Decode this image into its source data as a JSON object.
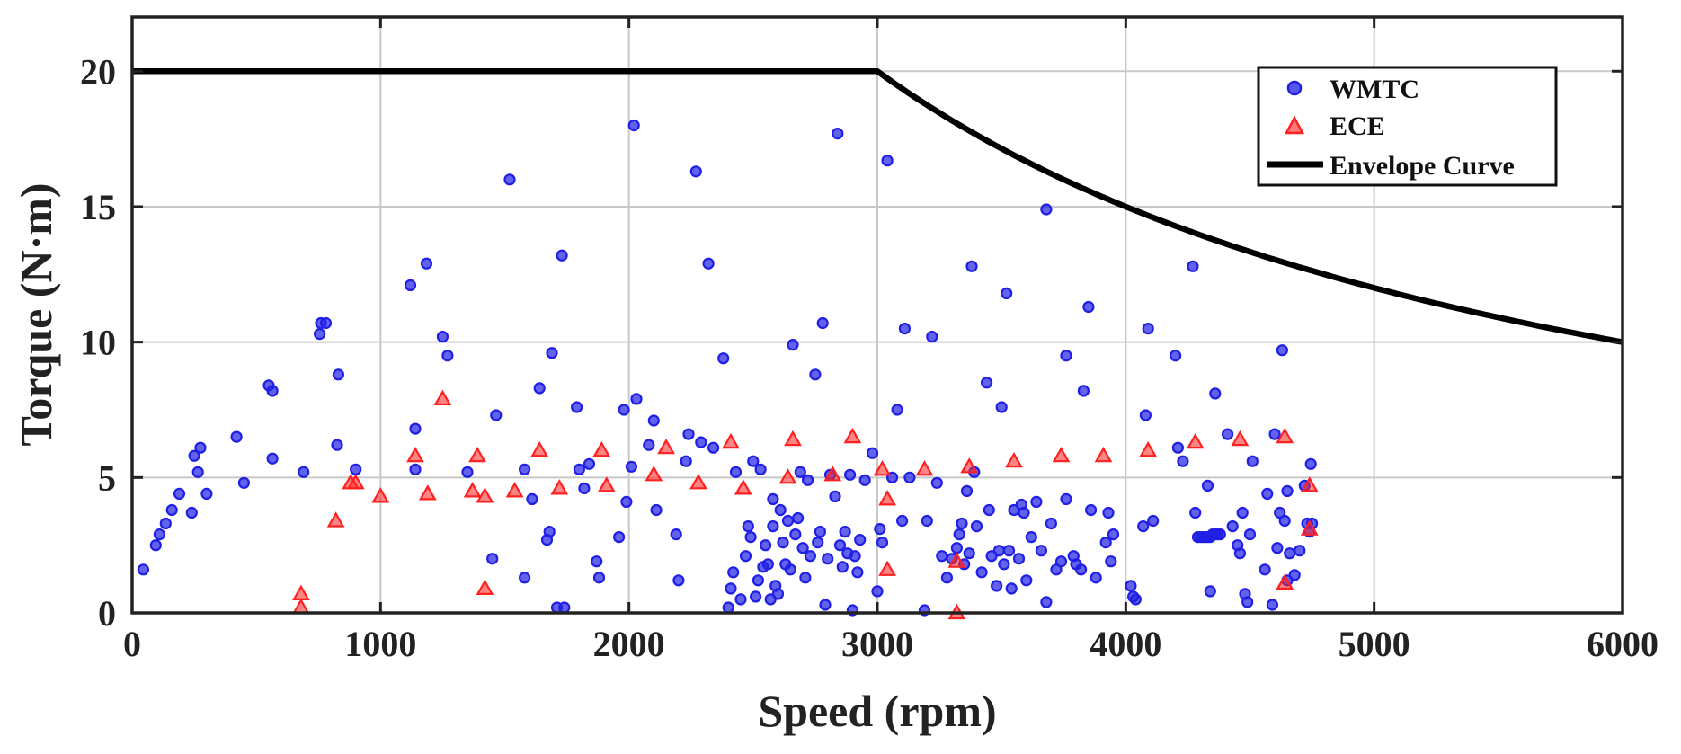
{
  "chart_data": {
    "type": "scatter",
    "xlabel": "Speed (rpm)",
    "ylabel": "Torque (N·m)",
    "xlim": [
      0,
      6000
    ],
    "ylim": [
      0,
      22
    ],
    "xticks": [
      0,
      1000,
      2000,
      3000,
      4000,
      5000,
      6000
    ],
    "yticks": [
      0,
      5,
      10,
      15,
      20
    ],
    "xtick_labels": [
      "0",
      "1000",
      "2000",
      "3000",
      "4000",
      "5000",
      "6000"
    ],
    "ytick_labels": [
      "0",
      "5",
      "10",
      "15",
      "20"
    ],
    "grid": true,
    "legend_position": "top-right",
    "colors": {
      "wmtc": "#1f1fe6",
      "ece": "#ff2020",
      "envelope": "#000000"
    },
    "series": [
      {
        "name": "WMTC",
        "marker": "circle",
        "points": [
          [
            45,
            1.6
          ],
          [
            95,
            2.5
          ],
          [
            110,
            2.9
          ],
          [
            135,
            3.3
          ],
          [
            160,
            3.8
          ],
          [
            190,
            4.4
          ],
          [
            240,
            3.7
          ],
          [
            250,
            5.8
          ],
          [
            265,
            5.2
          ],
          [
            275,
            6.1
          ],
          [
            300,
            4.4
          ],
          [
            420,
            6.5
          ],
          [
            450,
            4.8
          ],
          [
            550,
            8.4
          ],
          [
            565,
            8.2
          ],
          [
            565,
            5.7
          ],
          [
            690,
            5.2
          ],
          [
            755,
            10.3
          ],
          [
            760,
            10.7
          ],
          [
            780,
            10.7
          ],
          [
            825,
            6.2
          ],
          [
            830,
            8.8
          ],
          [
            900,
            5.3
          ],
          [
            1120,
            12.1
          ],
          [
            1140,
            6.8
          ],
          [
            1140,
            5.3
          ],
          [
            1185,
            12.9
          ],
          [
            1250,
            10.2
          ],
          [
            1270,
            9.5
          ],
          [
            1350,
            5.2
          ],
          [
            1450,
            2.0
          ],
          [
            1465,
            7.3
          ],
          [
            1520,
            16.0
          ],
          [
            1580,
            5.3
          ],
          [
            1580,
            1.3
          ],
          [
            1610,
            4.2
          ],
          [
            1640,
            8.3
          ],
          [
            1670,
            2.7
          ],
          [
            1680,
            3.0
          ],
          [
            1690,
            9.6
          ],
          [
            1710,
            0.2
          ],
          [
            1730,
            13.2
          ],
          [
            1740,
            0.2
          ],
          [
            1790,
            7.6
          ],
          [
            1800,
            5.3
          ],
          [
            1820,
            4.6
          ],
          [
            1840,
            5.5
          ],
          [
            1870,
            1.9
          ],
          [
            1880,
            1.3
          ],
          [
            1960,
            2.8
          ],
          [
            1980,
            7.5
          ],
          [
            1990,
            4.1
          ],
          [
            2010,
            5.4
          ],
          [
            2020,
            18.0
          ],
          [
            2030,
            7.9
          ],
          [
            2080,
            6.2
          ],
          [
            2100,
            7.1
          ],
          [
            2110,
            3.8
          ],
          [
            2190,
            2.9
          ],
          [
            2200,
            1.2
          ],
          [
            2230,
            5.6
          ],
          [
            2240,
            6.6
          ],
          [
            2270,
            16.3
          ],
          [
            2290,
            6.3
          ],
          [
            2320,
            12.9
          ],
          [
            2340,
            6.1
          ],
          [
            2380,
            9.4
          ],
          [
            2400,
            0.2
          ],
          [
            2410,
            0.9
          ],
          [
            2420,
            1.5
          ],
          [
            2430,
            5.2
          ],
          [
            2450,
            0.5
          ],
          [
            2470,
            2.1
          ],
          [
            2480,
            3.2
          ],
          [
            2490,
            2.8
          ],
          [
            2500,
            5.6
          ],
          [
            2510,
            0.6
          ],
          [
            2520,
            1.2
          ],
          [
            2530,
            5.3
          ],
          [
            2540,
            1.7
          ],
          [
            2550,
            2.5
          ],
          [
            2560,
            1.8
          ],
          [
            2570,
            0.5
          ],
          [
            2580,
            3.2
          ],
          [
            2580,
            4.2
          ],
          [
            2590,
            1.0
          ],
          [
            2600,
            0.7
          ],
          [
            2610,
            3.8
          ],
          [
            2620,
            2.6
          ],
          [
            2630,
            1.8
          ],
          [
            2640,
            3.4
          ],
          [
            2650,
            1.6
          ],
          [
            2660,
            9.9
          ],
          [
            2670,
            2.9
          ],
          [
            2680,
            3.5
          ],
          [
            2690,
            5.2
          ],
          [
            2700,
            2.4
          ],
          [
            2710,
            1.3
          ],
          [
            2720,
            4.9
          ],
          [
            2730,
            2.1
          ],
          [
            2750,
            8.8
          ],
          [
            2760,
            2.6
          ],
          [
            2770,
            3.0
          ],
          [
            2780,
            10.7
          ],
          [
            2790,
            0.3
          ],
          [
            2800,
            2.0
          ],
          [
            2810,
            5.1
          ],
          [
            2830,
            4.3
          ],
          [
            2840,
            17.7
          ],
          [
            2850,
            2.5
          ],
          [
            2860,
            1.7
          ],
          [
            2870,
            3.0
          ],
          [
            2880,
            2.2
          ],
          [
            2890,
            5.1
          ],
          [
            2900,
            0.1
          ],
          [
            2910,
            2.1
          ],
          [
            2920,
            1.5
          ],
          [
            2930,
            2.7
          ],
          [
            2950,
            4.9
          ],
          [
            2980,
            5.9
          ],
          [
            3000,
            0.8
          ],
          [
            3010,
            3.1
          ],
          [
            3020,
            2.6
          ],
          [
            3040,
            16.7
          ],
          [
            3060,
            5.0
          ],
          [
            3080,
            7.5
          ],
          [
            3100,
            3.4
          ],
          [
            3110,
            10.5
          ],
          [
            3130,
            5.0
          ],
          [
            3190,
            0.1
          ],
          [
            3200,
            3.4
          ],
          [
            3220,
            10.2
          ],
          [
            3240,
            4.8
          ],
          [
            3260,
            2.1
          ],
          [
            3280,
            1.3
          ],
          [
            3300,
            2.0
          ],
          [
            3320,
            2.4
          ],
          [
            3330,
            2.9
          ],
          [
            3340,
            3.3
          ],
          [
            3350,
            1.8
          ],
          [
            3360,
            4.5
          ],
          [
            3370,
            2.2
          ],
          [
            3380,
            12.8
          ],
          [
            3390,
            5.2
          ],
          [
            3400,
            3.2
          ],
          [
            3420,
            1.5
          ],
          [
            3440,
            8.5
          ],
          [
            3450,
            3.8
          ],
          [
            3460,
            2.1
          ],
          [
            3480,
            1.0
          ],
          [
            3490,
            2.3
          ],
          [
            3500,
            7.6
          ],
          [
            3510,
            1.8
          ],
          [
            3520,
            11.8
          ],
          [
            3530,
            2.3
          ],
          [
            3540,
            0.9
          ],
          [
            3550,
            3.8
          ],
          [
            3570,
            2.0
          ],
          [
            3580,
            4.0
          ],
          [
            3590,
            3.7
          ],
          [
            3600,
            1.2
          ],
          [
            3620,
            2.8
          ],
          [
            3640,
            4.1
          ],
          [
            3660,
            2.3
          ],
          [
            3680,
            14.9
          ],
          [
            3680,
            0.4
          ],
          [
            3700,
            3.3
          ],
          [
            3720,
            1.6
          ],
          [
            3740,
            1.9
          ],
          [
            3760,
            9.5
          ],
          [
            3760,
            4.2
          ],
          [
            3790,
            2.1
          ],
          [
            3800,
            1.8
          ],
          [
            3820,
            1.6
          ],
          [
            3830,
            8.2
          ],
          [
            3850,
            11.3
          ],
          [
            3860,
            3.8
          ],
          [
            3880,
            1.3
          ],
          [
            3920,
            2.6
          ],
          [
            3930,
            3.7
          ],
          [
            3940,
            1.9
          ],
          [
            3950,
            2.9
          ],
          [
            4020,
            1.0
          ],
          [
            4030,
            0.6
          ],
          [
            4040,
            0.5
          ],
          [
            4070,
            3.2
          ],
          [
            4080,
            7.3
          ],
          [
            4090,
            10.5
          ],
          [
            4110,
            3.4
          ],
          [
            4200,
            9.5
          ],
          [
            4210,
            6.1
          ],
          [
            4230,
            5.6
          ],
          [
            4270,
            12.8
          ],
          [
            4280,
            3.7
          ],
          [
            4290,
            2.8
          ],
          [
            4300,
            2.8
          ],
          [
            4310,
            2.8
          ],
          [
            4320,
            2.8
          ],
          [
            4330,
            2.8
          ],
          [
            4340,
            2.8
          ],
          [
            4350,
            2.9
          ],
          [
            4360,
            2.9
          ],
          [
            4370,
            2.9
          ],
          [
            4380,
            2.9
          ],
          [
            4330,
            4.7
          ],
          [
            4340,
            0.8
          ],
          [
            4360,
            8.1
          ],
          [
            4410,
            6.6
          ],
          [
            4430,
            3.2
          ],
          [
            4450,
            2.5
          ],
          [
            4460,
            2.2
          ],
          [
            4470,
            3.7
          ],
          [
            4480,
            0.7
          ],
          [
            4490,
            0.4
          ],
          [
            4500,
            2.9
          ],
          [
            4510,
            5.6
          ],
          [
            4560,
            1.6
          ],
          [
            4570,
            4.4
          ],
          [
            4590,
            0.3
          ],
          [
            4600,
            6.6
          ],
          [
            4610,
            2.4
          ],
          [
            4620,
            3.7
          ],
          [
            4630,
            9.7
          ],
          [
            4640,
            3.4
          ],
          [
            4650,
            4.5
          ],
          [
            4650,
            1.2
          ],
          [
            4660,
            2.2
          ],
          [
            4680,
            1.4
          ],
          [
            4700,
            2.3
          ],
          [
            4720,
            4.7
          ],
          [
            4730,
            3.3
          ],
          [
            4740,
            3.0
          ],
          [
            4745,
            5.5
          ],
          [
            4750,
            3.3
          ]
        ]
      },
      {
        "name": "ECE",
        "marker": "triangle",
        "points": [
          [
            680,
            0.7
          ],
          [
            680,
            0.2
          ],
          [
            820,
            3.4
          ],
          [
            880,
            4.8
          ],
          [
            900,
            4.8
          ],
          [
            1000,
            4.3
          ],
          [
            1140,
            5.8
          ],
          [
            1190,
            4.4
          ],
          [
            1250,
            7.9
          ],
          [
            1370,
            4.5
          ],
          [
            1390,
            5.8
          ],
          [
            1420,
            4.3
          ],
          [
            1420,
            0.9
          ],
          [
            1540,
            4.5
          ],
          [
            1640,
            6.0
          ],
          [
            1720,
            4.6
          ],
          [
            1890,
            6.0
          ],
          [
            1910,
            4.7
          ],
          [
            2100,
            5.1
          ],
          [
            2150,
            6.1
          ],
          [
            2280,
            4.8
          ],
          [
            2410,
            6.3
          ],
          [
            2460,
            4.6
          ],
          [
            2640,
            5.0
          ],
          [
            2660,
            6.4
          ],
          [
            2820,
            5.1
          ],
          [
            2900,
            6.5
          ],
          [
            3020,
            5.3
          ],
          [
            3040,
            4.2
          ],
          [
            3040,
            1.6
          ],
          [
            3190,
            5.3
          ],
          [
            3320,
            0.0
          ],
          [
            3320,
            1.9
          ],
          [
            3370,
            5.4
          ],
          [
            3550,
            5.6
          ],
          [
            3740,
            5.8
          ],
          [
            3910,
            5.8
          ],
          [
            4090,
            6.0
          ],
          [
            4280,
            6.3
          ],
          [
            4460,
            6.4
          ],
          [
            4640,
            6.5
          ],
          [
            4640,
            1.1
          ],
          [
            4740,
            4.7
          ],
          [
            4740,
            3.1
          ]
        ]
      },
      {
        "name": "Envelope Curve",
        "line": true,
        "function": "T = min(20, 60000 / n)",
        "x_start": 0,
        "x_knee": 3000,
        "x_end": 6000
      }
    ]
  }
}
